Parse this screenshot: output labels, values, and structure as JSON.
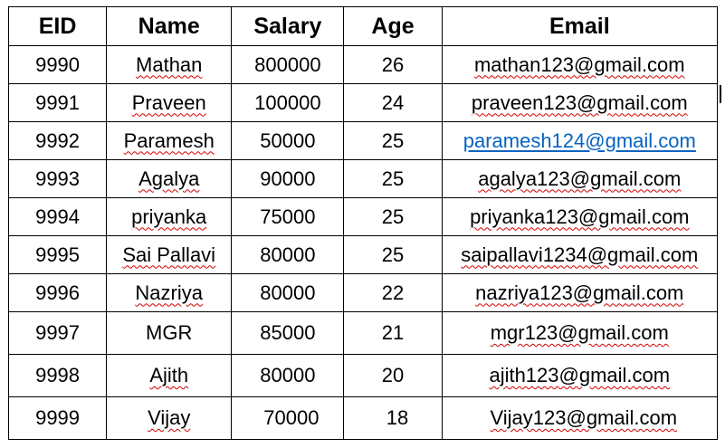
{
  "table": {
    "headers": {
      "eid": "EID",
      "name": "Name",
      "salary": "Salary",
      "age": "Age",
      "email": "Email"
    },
    "rows": [
      {
        "eid": "9990",
        "name": "Mathan",
        "salary": "800000",
        "age": "26",
        "email": "mathan123@gmail.com"
      },
      {
        "eid": "9991",
        "name": "Praveen",
        "salary": "100000",
        "age": "24",
        "email": "praveen123@gmail.com"
      },
      {
        "eid": "9992",
        "name": "Paramesh",
        "salary": "50000",
        "age": "25",
        "email": "paramesh124@gmail.com"
      },
      {
        "eid": "9993",
        "name": "Agalya",
        "salary": "90000",
        "age": "25",
        "email": "agalya123@gmail.com"
      },
      {
        "eid": "9994",
        "name": "priyanka",
        "salary": "75000",
        "age": "25",
        "email": "priyanka123@gmail.com"
      },
      {
        "eid": "9995",
        "name": "Sai Pallavi",
        "salary": "80000",
        "age": "25",
        "email": "saipallavi1234@gmail.com"
      },
      {
        "eid": "9996",
        "name": "Nazriya",
        "salary": "80000",
        "age": "22",
        "email": "nazriya123@gmail.com"
      },
      {
        "eid": "9997",
        "name": "MGR",
        "salary": "85000",
        "age": "21",
        "email": "mgr123@gmail.com"
      },
      {
        "eid": "9998",
        "name": "Ajith",
        "salary": "80000",
        "age": "20",
        "email": "ajith123@gmail.com"
      },
      {
        "eid": "9999",
        "name": "Vijay",
        "salary": "70000",
        "age": "18",
        "email": "Vijay123@gmail.com"
      }
    ]
  },
  "colors": {
    "text": "#000000",
    "hyperlink": "#0563c1",
    "spellcheck": "#d40000",
    "border": "#000000"
  }
}
